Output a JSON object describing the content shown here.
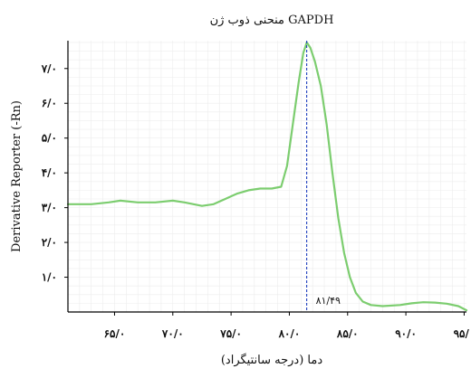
{
  "chart_data": {
    "type": "line",
    "title": "منحنی ذوب ژن GAPDH",
    "xlabel": "دما (درجه سانتیگراد)",
    "ylabel": "Derivative Reporter (-Rn)",
    "xlim": [
      61.0,
      95.2
    ],
    "ylim": [
      0.0,
      7.8
    ],
    "x_ticks": [
      65,
      70,
      75,
      80,
      85,
      90,
      95
    ],
    "x_tick_labels": [
      "۶۵/۰",
      "۷۰/۰",
      "۷۵/۰",
      "۸۰/۰",
      "۸۵/۰",
      "۹۰/۰",
      "۹۵/۰"
    ],
    "y_ticks": [
      1,
      2,
      3,
      4,
      5,
      6,
      7
    ],
    "y_tick_labels": [
      "۱/۰",
      "۲/۰",
      "۳/۰",
      "۴/۰",
      "۵/۰",
      "۶/۰",
      "۷/۰"
    ],
    "grid": true,
    "peak_marker": {
      "x": 81.49,
      "label": "۸۱/۴۹"
    },
    "series": [
      {
        "color": "#7ccd6f",
        "x": [
          61.0,
          63.0,
          64.5,
          65.5,
          67.0,
          68.5,
          70.0,
          71.0,
          72.5,
          73.5,
          74.5,
          75.5,
          76.5,
          77.5,
          78.5,
          79.3,
          79.8,
          80.3,
          80.8,
          81.2,
          81.5,
          81.8,
          82.2,
          82.7,
          83.2,
          83.7,
          84.2,
          84.7,
          85.2,
          85.7,
          86.3,
          87.0,
          88.0,
          89.5,
          90.5,
          91.5,
          92.5,
          93.5,
          94.5,
          95.2
        ],
        "y": [
          3.1,
          3.1,
          3.15,
          3.2,
          3.15,
          3.15,
          3.2,
          3.15,
          3.05,
          3.1,
          3.25,
          3.4,
          3.5,
          3.55,
          3.55,
          3.6,
          4.2,
          5.4,
          6.6,
          7.45,
          7.75,
          7.6,
          7.2,
          6.5,
          5.4,
          4.0,
          2.7,
          1.7,
          1.0,
          0.55,
          0.3,
          0.2,
          0.17,
          0.2,
          0.25,
          0.28,
          0.27,
          0.24,
          0.17,
          0.05
        ]
      }
    ]
  }
}
